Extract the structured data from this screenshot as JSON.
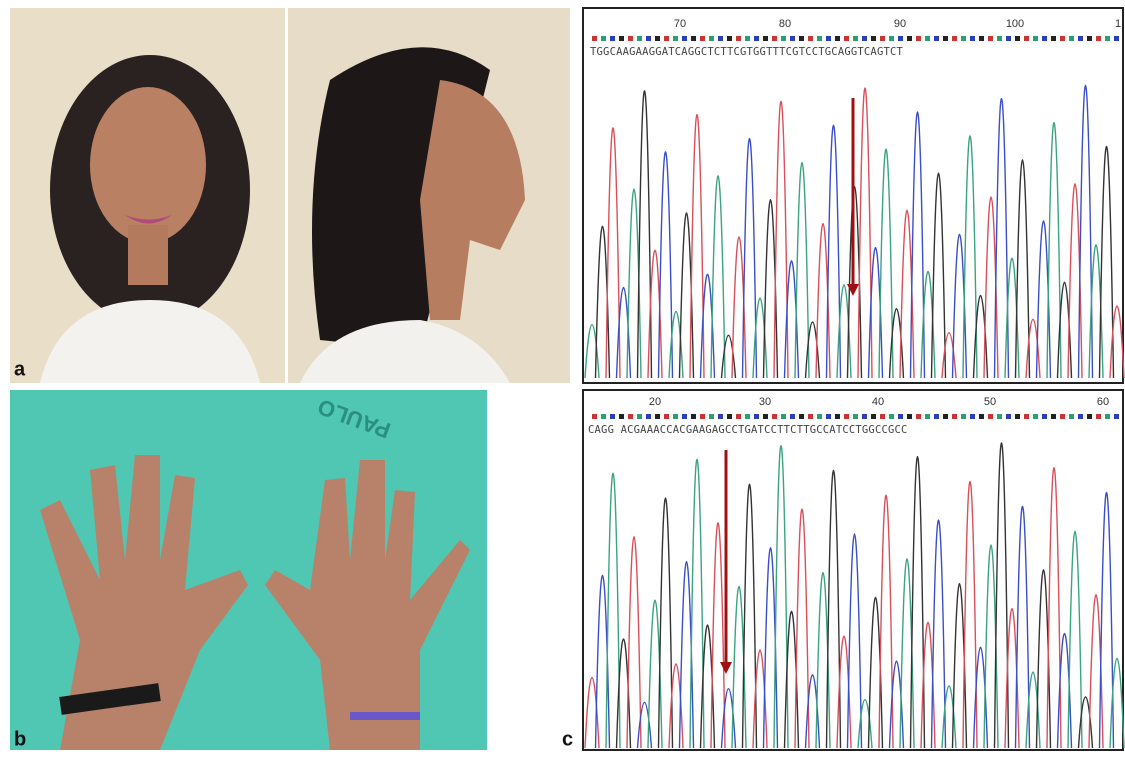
{
  "panels": {
    "a": "a",
    "b": "b",
    "c": "c"
  },
  "shirt_text": "PAULO",
  "trace_top": {
    "positions": [
      "70",
      "80",
      "90",
      "100",
      "1"
    ],
    "sequence": "TGGCAAGAAGGATCAGGCTCTTCGTGGTTTCGTCCTGCAGGTCAGTCT"
  },
  "trace_bottom": {
    "positions": [
      "20",
      "30",
      "40",
      "50",
      "60"
    ],
    "sequence": "CAGG ACGAAACCACGAAGAGCCTGATCCTTCTTGCCATCCTGGCCGCC"
  }
}
